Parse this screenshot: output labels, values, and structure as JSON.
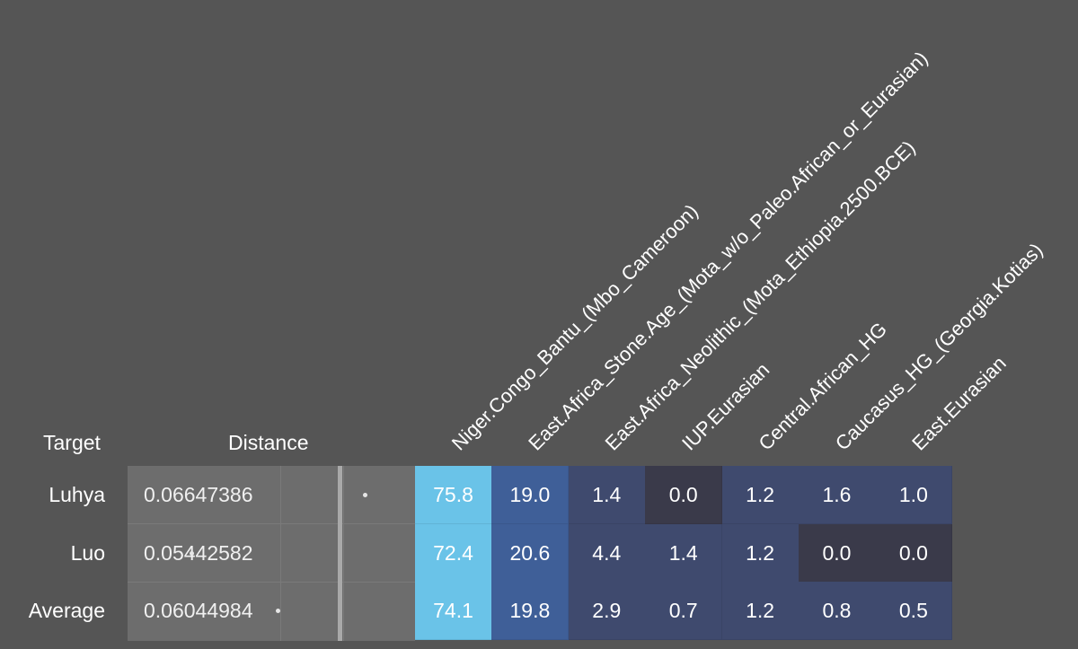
{
  "headers": {
    "target": "Target",
    "distance": "Distance"
  },
  "chart_data": {
    "type": "table",
    "columns": [
      "Niger.Congo_Bantu_(Mbo_Cameroon)",
      "East.Africa_Stone.Age_(Mota_w/o_Paleo.African_or_Eurasian)",
      "East.Africa_Neolithic_(Mota_Ethiopia.2500.BCE)",
      "IUP.Eurasian",
      "Central.African_HG",
      "Caucasus_HG_(Georgia.Kotias)",
      "East.Eurasian"
    ],
    "rows": [
      {
        "target": "Luhya",
        "distance": "0.06647386",
        "values": [
          "75.8",
          "19.0",
          "1.4",
          "0.0",
          "1.2",
          "1.6",
          "1.0"
        ]
      },
      {
        "target": "Luo",
        "distance": "0.05442582",
        "values": [
          "72.4",
          "20.6",
          "4.4",
          "1.4",
          "1.2",
          "0.0",
          "0.0"
        ]
      },
      {
        "target": "Average",
        "distance": "0.06044984",
        "values": [
          "74.1",
          "19.8",
          "2.9",
          "0.7",
          "1.2",
          "0.8",
          "0.5"
        ]
      }
    ],
    "distance_scale": [
      0.05,
      0.07
    ],
    "colors": {
      "background": "#555555",
      "distance_panel": "#6d6d6d",
      "cell_zero": "#3a3a4a",
      "cell_low": "#3f4a6e",
      "cell_mid": "#3f5f98",
      "cell_high": "#6ac3e8"
    }
  }
}
